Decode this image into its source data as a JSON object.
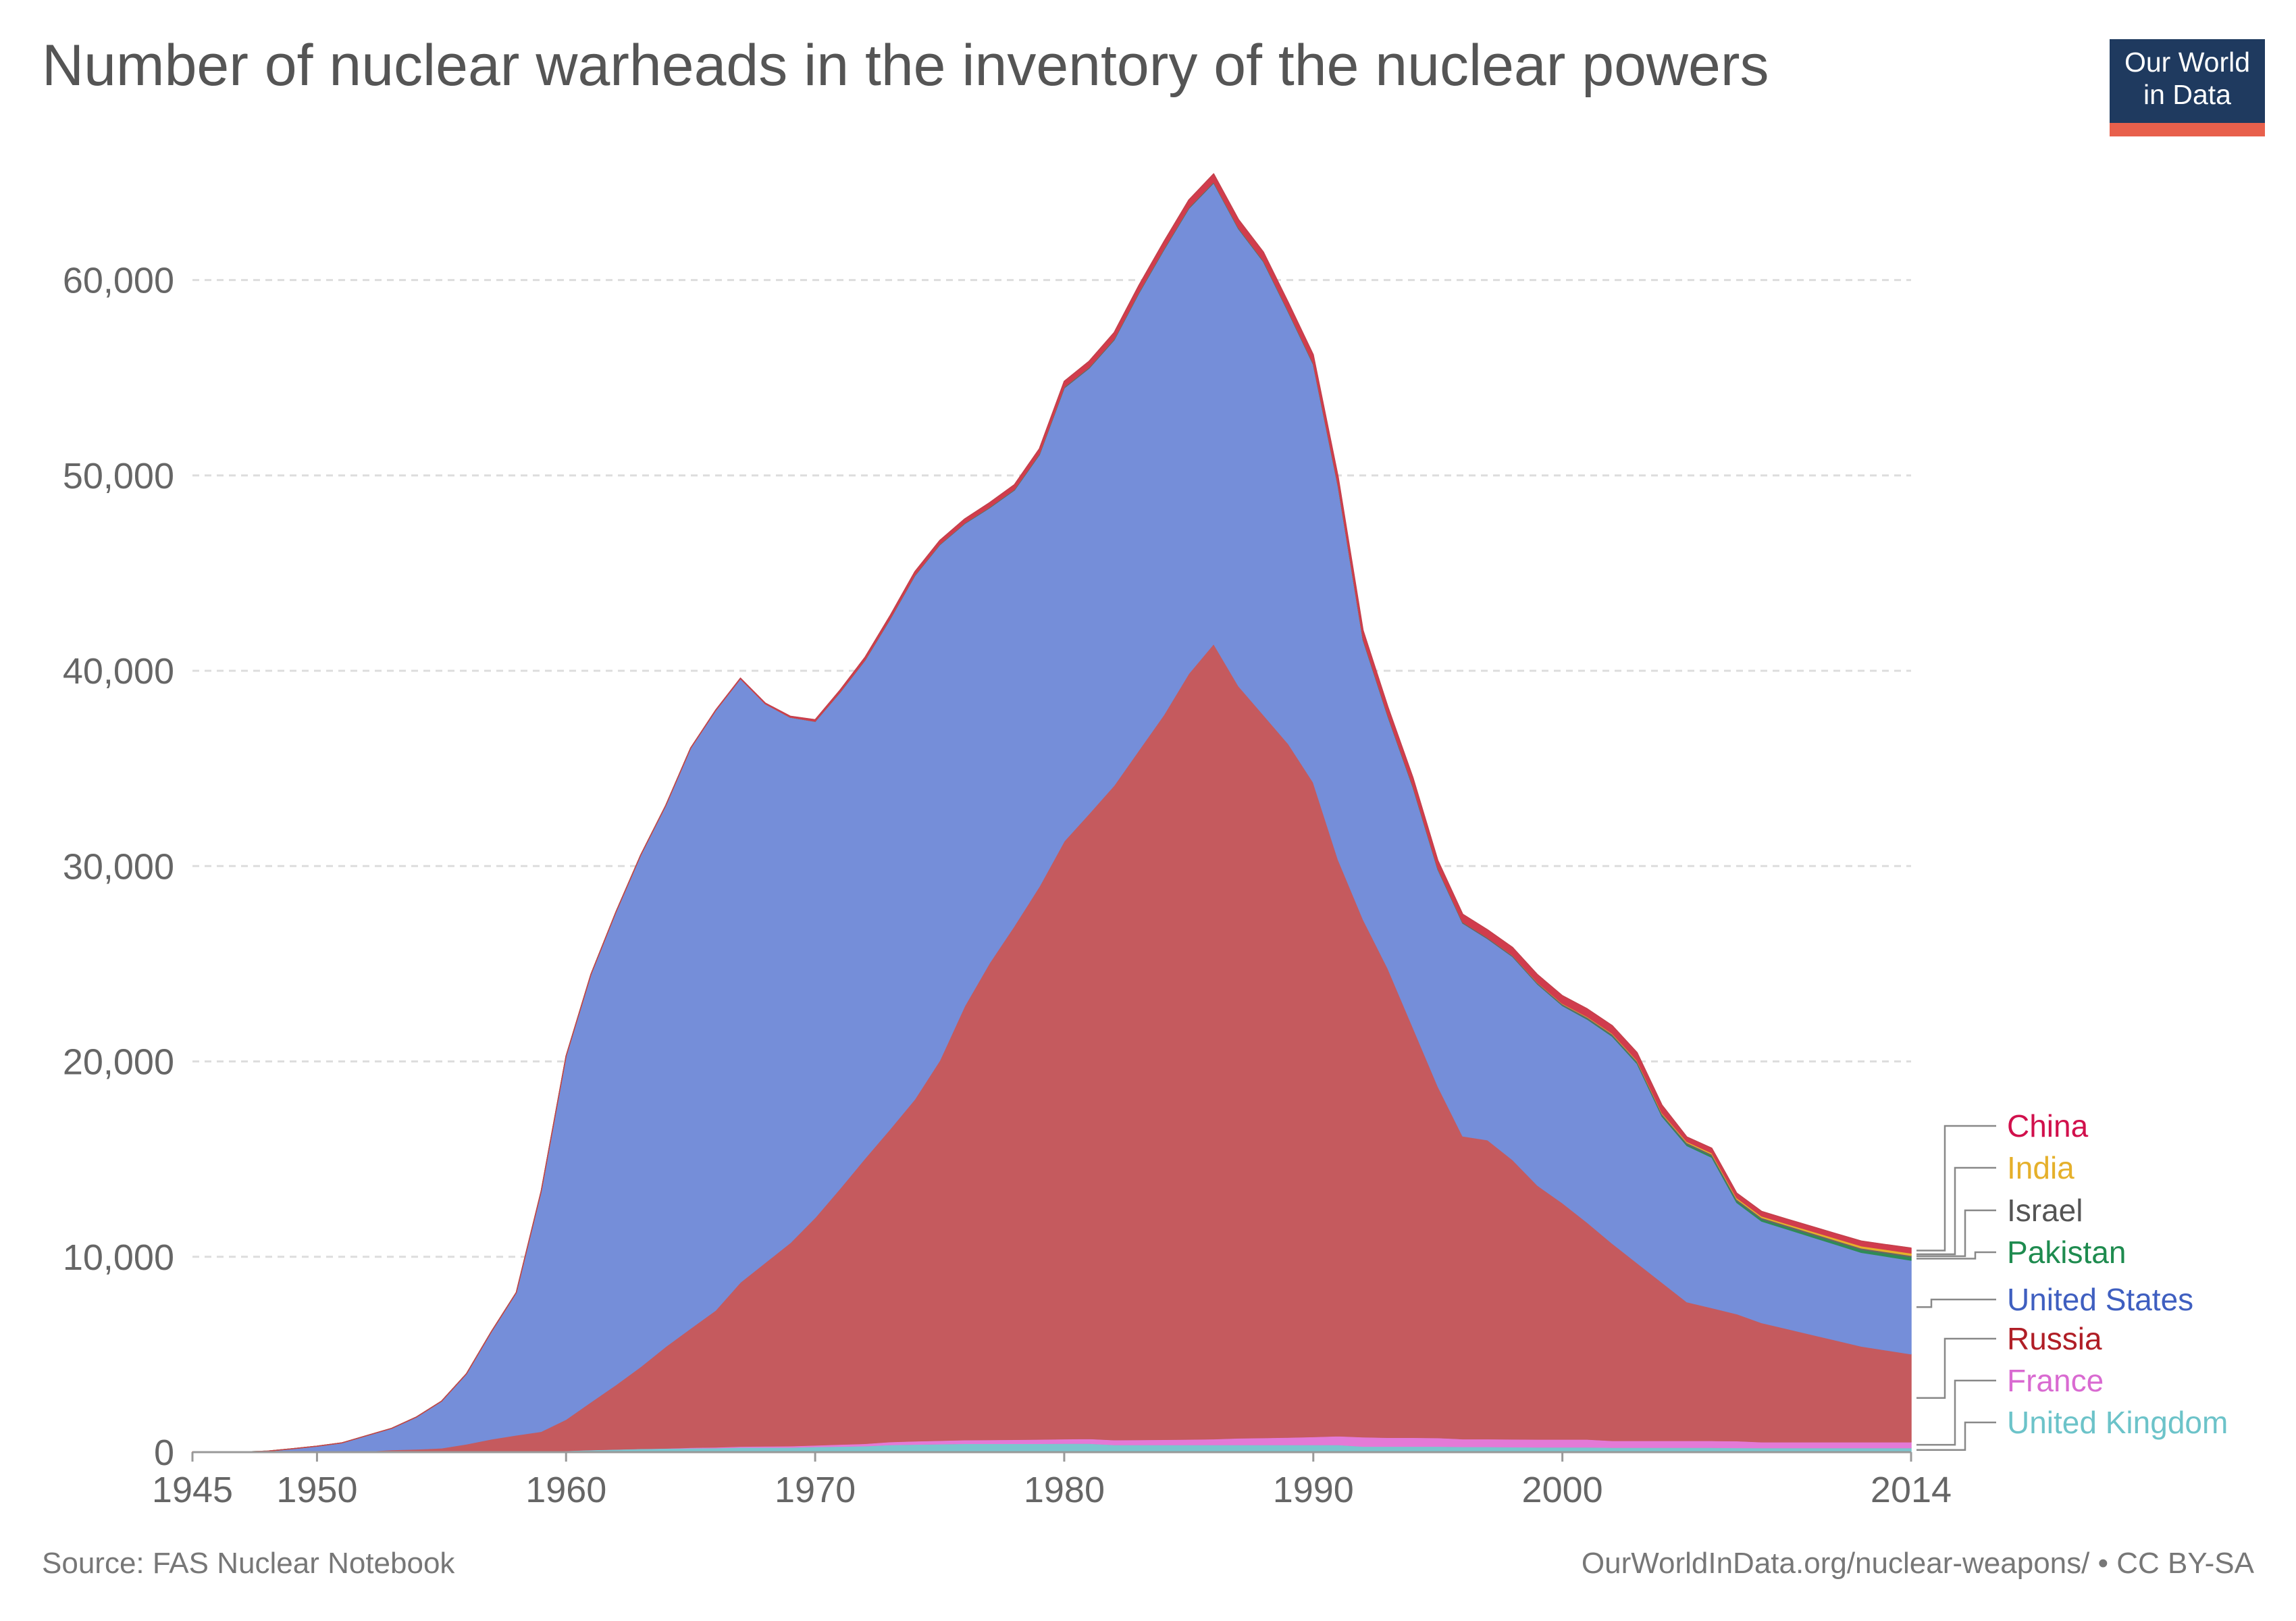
{
  "title": "Number of nuclear warheads in the inventory of the nuclear powers",
  "logo": {
    "line1": "Our World",
    "line2": "in Data",
    "bg": "#1f3a5f",
    "accent": "#e8604c"
  },
  "footer": {
    "source": "Source: FAS Nuclear Notebook",
    "credit": "OurWorldInData.org/nuclear-weapons/ • CC BY-SA"
  },
  "chart_data": {
    "type": "area",
    "stacked": true,
    "title": "Number of nuclear warheads in the inventory of the nuclear powers",
    "xlim": [
      1945,
      2014
    ],
    "ylim": [
      0,
      65000
    ],
    "x_ticks": [
      1945,
      1950,
      1960,
      1970,
      1980,
      1990,
      2000,
      2014
    ],
    "x_tick_labels": [
      "1945",
      "1950",
      "1960",
      "1970",
      "1980",
      "1990",
      "2000",
      "2014"
    ],
    "y_ticks": [
      0,
      10000,
      20000,
      30000,
      40000,
      50000,
      60000
    ],
    "y_tick_labels": [
      "0",
      "10,000",
      "20,000",
      "30,000",
      "40,000",
      "50,000",
      "60,000"
    ],
    "grid": "horizontal dashed",
    "legend": "right",
    "x": [
      1945,
      1946,
      1947,
      1948,
      1949,
      1950,
      1951,
      1952,
      1953,
      1954,
      1955,
      1956,
      1957,
      1958,
      1959,
      1960,
      1961,
      1962,
      1963,
      1964,
      1965,
      1966,
      1967,
      1968,
      1969,
      1970,
      1971,
      1972,
      1973,
      1974,
      1975,
      1976,
      1977,
      1978,
      1979,
      1980,
      1981,
      1982,
      1983,
      1984,
      1985,
      1986,
      1987,
      1988,
      1989,
      1990,
      1991,
      1992,
      1993,
      1994,
      1995,
      1996,
      1997,
      1998,
      1999,
      2000,
      2001,
      2002,
      2003,
      2004,
      2005,
      2006,
      2007,
      2008,
      2009,
      2010,
      2011,
      2012,
      2013,
      2014
    ],
    "series": [
      {
        "name": "United Kingdom",
        "color": "#7bc6cf",
        "values": [
          0,
          0,
          0,
          0,
          0,
          0,
          0,
          0,
          0,
          5,
          10,
          15,
          20,
          22,
          60,
          80,
          120,
          150,
          180,
          200,
          210,
          220,
          250,
          250,
          250,
          280,
          300,
          320,
          380,
          400,
          420,
          440,
          440,
          440,
          440,
          450,
          450,
          380,
          380,
          380,
          380,
          380,
          380,
          380,
          380,
          380,
          380,
          300,
          300,
          300,
          300,
          280,
          280,
          270,
          260,
          260,
          260,
          240,
          240,
          240,
          240,
          240,
          230,
          225,
          225,
          225,
          225,
          225,
          225,
          225
        ]
      },
      {
        "name": "France",
        "color": "#e37ad7",
        "values": [
          0,
          0,
          0,
          0,
          0,
          0,
          0,
          0,
          0,
          0,
          0,
          0,
          0,
          0,
          0,
          0,
          0,
          0,
          0,
          4,
          30,
          40,
          50,
          60,
          70,
          80,
          100,
          120,
          150,
          170,
          180,
          190,
          200,
          210,
          220,
          230,
          240,
          250,
          260,
          270,
          280,
          300,
          340,
          360,
          380,
          410,
          450,
          480,
          450,
          450,
          440,
          400,
          400,
          400,
          400,
          400,
          400,
          350,
          350,
          350,
          350,
          350,
          350,
          300,
          300,
          300,
          300,
          300,
          300,
          300
        ]
      },
      {
        "name": "Russia",
        "color": "#c55a5e",
        "values": [
          0,
          0,
          0,
          0,
          1,
          5,
          25,
          50,
          120,
          150,
          200,
          400,
          650,
          850,
          1000,
          1600,
          2450,
          3300,
          4200,
          5200,
          6100,
          7000,
          8400,
          9400,
          10400,
          11650,
          13100,
          14600,
          16000,
          17500,
          19450,
          22200,
          24400,
          26300,
          28300,
          30600,
          32000,
          33500,
          35300,
          37100,
          39200,
          40700,
          38500,
          37000,
          35500,
          33500,
          29500,
          26500,
          24000,
          21000,
          18000,
          15500,
          15300,
          14300,
          13000,
          12100,
          11100,
          10100,
          9100,
          8100,
          7100,
          6800,
          6500,
          6100,
          5800,
          5500,
          5200,
          4900,
          4700,
          4500
        ]
      },
      {
        "name": "United States",
        "color": "#758ed9",
        "values": [
          2,
          9,
          13,
          50,
          170,
          300,
          450,
          800,
          1100,
          1650,
          2400,
          3600,
          5500,
          7300,
          12300,
          18600,
          21900,
          24200,
          26200,
          27700,
          29700,
          30700,
          30900,
          28600,
          26900,
          25400,
          25400,
          25500,
          26100,
          26800,
          26400,
          24700,
          23300,
          22300,
          22100,
          23200,
          22800,
          22800,
          23400,
          23800,
          23800,
          23600,
          23400,
          23200,
          22100,
          21400,
          19100,
          14300,
          12900,
          12300,
          11100,
          10900,
          10300,
          10400,
          10300,
          10100,
          10400,
          10600,
          10200,
          8500,
          8000,
          7700,
          5700,
          5200,
          5100,
          5000,
          4900,
          4800,
          4800,
          4800
        ]
      },
      {
        "name": "Pakistan",
        "color": "#2e8b57",
        "values": [
          0,
          0,
          0,
          0,
          0,
          0,
          0,
          0,
          0,
          0,
          0,
          0,
          0,
          0,
          0,
          0,
          0,
          0,
          0,
          0,
          0,
          0,
          0,
          0,
          0,
          0,
          0,
          0,
          0,
          0,
          0,
          0,
          0,
          0,
          0,
          0,
          0,
          0,
          0,
          0,
          0,
          0,
          0,
          0,
          0,
          0,
          0,
          0,
          0,
          0,
          0,
          0,
          0,
          5,
          15,
          25,
          35,
          45,
          55,
          65,
          75,
          85,
          95,
          105,
          115,
          125,
          135,
          145,
          155,
          165
        ]
      },
      {
        "name": "Israel",
        "color": "#666666",
        "values": [
          0,
          0,
          0,
          0,
          0,
          0,
          0,
          0,
          0,
          0,
          0,
          0,
          0,
          0,
          0,
          0,
          0,
          0,
          0,
          0,
          0,
          0,
          0,
          0,
          5,
          10,
          15,
          20,
          25,
          30,
          35,
          40,
          45,
          50,
          55,
          60,
          60,
          60,
          60,
          60,
          60,
          60,
          60,
          60,
          60,
          60,
          60,
          60,
          60,
          60,
          60,
          60,
          60,
          60,
          60,
          60,
          70,
          70,
          70,
          70,
          80,
          80,
          80,
          80,
          80,
          80,
          80,
          80,
          80,
          80
        ]
      },
      {
        "name": "India",
        "color": "#e5b02b",
        "values": [
          0,
          0,
          0,
          0,
          0,
          0,
          0,
          0,
          0,
          0,
          0,
          0,
          0,
          0,
          0,
          0,
          0,
          0,
          0,
          0,
          0,
          0,
          0,
          0,
          0,
          0,
          0,
          0,
          0,
          0,
          0,
          0,
          0,
          0,
          0,
          0,
          0,
          0,
          0,
          0,
          0,
          0,
          0,
          0,
          0,
          0,
          0,
          0,
          0,
          0,
          0,
          0,
          0,
          5,
          15,
          25,
          30,
          35,
          40,
          45,
          55,
          65,
          70,
          75,
          80,
          90,
          100,
          110,
          115,
          120
        ]
      },
      {
        "name": "China",
        "color": "#d13c4d",
        "values": [
          0,
          0,
          0,
          0,
          0,
          0,
          0,
          0,
          0,
          0,
          0,
          0,
          0,
          0,
          0,
          0,
          0,
          0,
          0,
          0,
          5,
          20,
          25,
          35,
          50,
          75,
          100,
          130,
          150,
          170,
          185,
          200,
          220,
          230,
          250,
          280,
          300,
          320,
          340,
          360,
          380,
          400,
          420,
          430,
          430,
          430,
          430,
          430,
          430,
          430,
          400,
          400,
          400,
          400,
          400,
          400,
          400,
          400,
          400,
          400,
          235,
          240,
          240,
          240,
          240,
          240,
          240,
          250,
          250,
          260
        ]
      }
    ],
    "legend_entries": [
      {
        "name": "China",
        "color": "#d1104c"
      },
      {
        "name": "India",
        "color": "#e5b02b"
      },
      {
        "name": "Israel",
        "color": "#555555"
      },
      {
        "name": "Pakistan",
        "color": "#1e8b4f"
      },
      {
        "name": "United States",
        "color": "#3f5fc0"
      },
      {
        "name": "Russia",
        "color": "#b01e26"
      },
      {
        "name": "France",
        "color": "#d96ad1"
      },
      {
        "name": "United Kingdom",
        "color": "#6cc3c9"
      }
    ]
  }
}
